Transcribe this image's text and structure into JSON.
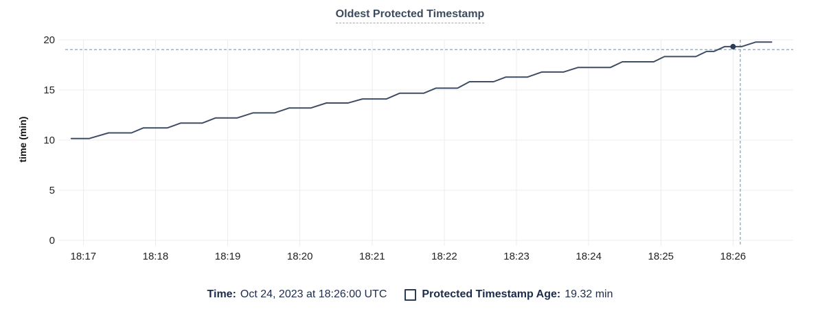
{
  "title": {
    "text": "Oldest Protected Timestamp"
  },
  "legend": {
    "time_label": "Time:",
    "time_value": "Oct 24, 2023 at 18:26:00 UTC",
    "series_label": "Protected Timestamp Age:",
    "series_value": "19.32 min",
    "checkbox_checked": false
  },
  "chart_data": {
    "type": "line",
    "title": "Oldest Protected Timestamp",
    "xlabel": "",
    "ylabel": "time (min)",
    "ylim": [
      0,
      20
    ],
    "y_ticks": [
      0,
      5,
      10,
      15,
      20
    ],
    "x_tick_labels": [
      "18:17",
      "18:18",
      "18:19",
      "18:20",
      "18:21",
      "18:22",
      "18:23",
      "18:24",
      "18:25",
      "18:26"
    ],
    "x_domain": [
      "18:16:45",
      "18:26:50"
    ],
    "grid": true,
    "legend_position": "bottom",
    "series": [
      {
        "name": "Protected Timestamp Age",
        "unit": "min",
        "points": [
          [
            "18:16:50",
            10.16
          ],
          [
            "18:17:05",
            10.16
          ],
          [
            "18:17:21",
            10.72
          ],
          [
            "18:17:40",
            10.72
          ],
          [
            "18:17:50",
            11.22
          ],
          [
            "18:18:10",
            11.22
          ],
          [
            "18:18:21",
            11.7
          ],
          [
            "18:18:39",
            11.7
          ],
          [
            "18:18:50",
            12.21
          ],
          [
            "18:19:08",
            12.21
          ],
          [
            "18:19:21",
            12.71
          ],
          [
            "18:19:39",
            12.71
          ],
          [
            "18:19:51",
            13.2
          ],
          [
            "18:20:09",
            13.2
          ],
          [
            "18:20:22",
            13.7
          ],
          [
            "18:20:40",
            13.7
          ],
          [
            "18:20:52",
            14.1
          ],
          [
            "18:21:12",
            14.1
          ],
          [
            "18:21:23",
            14.68
          ],
          [
            "18:21:43",
            14.68
          ],
          [
            "18:21:53",
            15.18
          ],
          [
            "18:22:11",
            15.18
          ],
          [
            "18:22:21",
            15.82
          ],
          [
            "18:22:41",
            15.82
          ],
          [
            "18:22:51",
            16.28
          ],
          [
            "18:23:09",
            16.28
          ],
          [
            "18:23:21",
            16.79
          ],
          [
            "18:23:39",
            16.79
          ],
          [
            "18:23:51",
            17.24
          ],
          [
            "18:24:18",
            17.24
          ],
          [
            "18:24:28",
            17.81
          ],
          [
            "18:24:54",
            17.81
          ],
          [
            "18:25:03",
            18.33
          ],
          [
            "18:25:29",
            18.33
          ],
          [
            "18:25:38",
            18.84
          ],
          [
            "18:25:44",
            18.84
          ],
          [
            "18:25:53",
            19.32
          ],
          [
            "18:26:07",
            19.32
          ],
          [
            "18:26:19",
            19.78
          ],
          [
            "18:26:32",
            19.78
          ]
        ]
      }
    ],
    "hover_point": {
      "time": "18:26:00",
      "value": 19.32
    },
    "crosshair": {
      "time": "18:26:06",
      "value": 19.02
    }
  },
  "colors": {
    "background": "#ffffff",
    "line": "#3e4d66",
    "dot": "#2c3c57",
    "grid": "#ececec",
    "axis_text": "#222222",
    "crosshair": "#9db1bf",
    "title_text": "#3c4a5e",
    "title_underline": "#9aa8bf",
    "legend_text": "#1c2b4a",
    "checkbox_border": "#2a3b58"
  }
}
